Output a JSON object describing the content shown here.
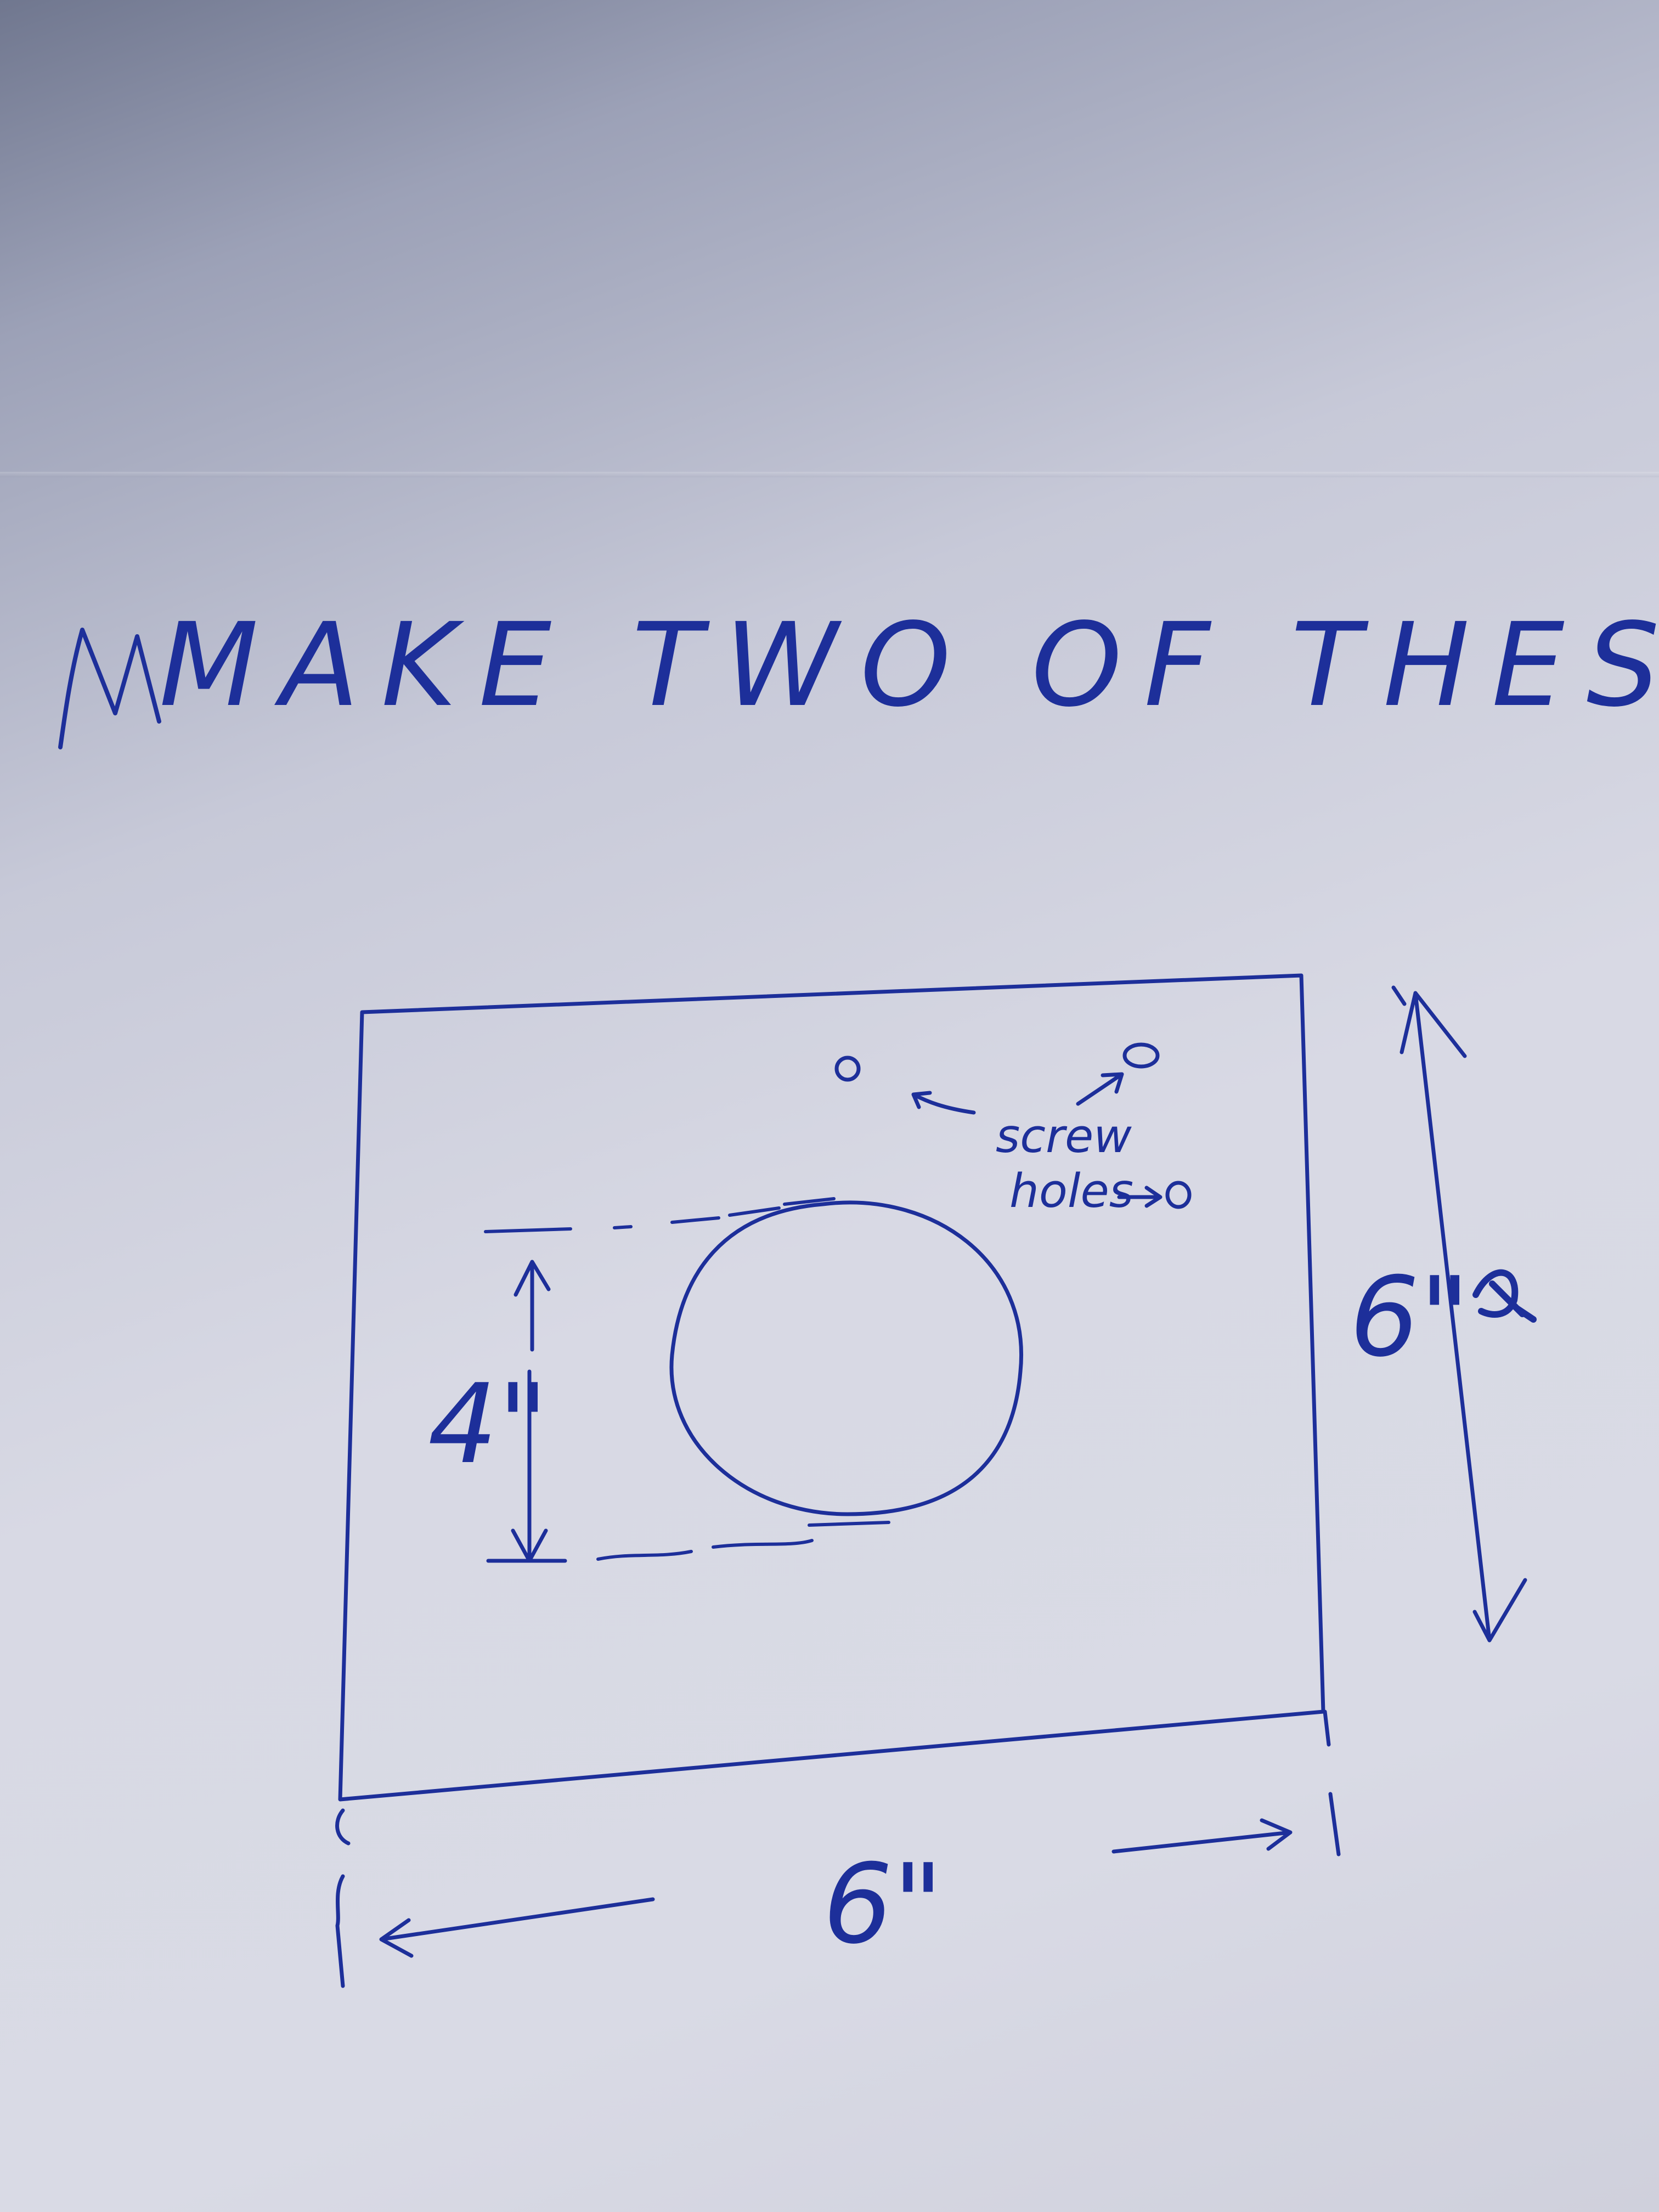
{
  "title": "MAKE TWO OF THESE",
  "screw_label_line1": "screw",
  "screw_label_line2": "holes",
  "dim_height": "4\"",
  "dim_width": "6\"",
  "dim_side": "6\"",
  "colors": {
    "ink": "#1d2f9a",
    "paper": "#d9dae5"
  }
}
